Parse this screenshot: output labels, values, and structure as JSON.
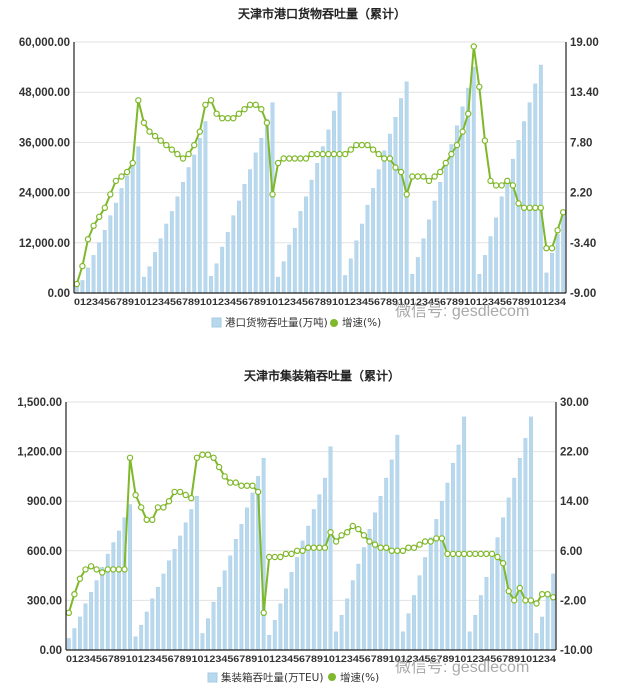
{
  "charts": [
    {
      "chart_data": {
        "type": "bar",
        "title": "天津市港口货物吞吐量（累计）",
        "y_left": {
          "ylim": [
            0,
            60000
          ],
          "ticks": [
            "0.00",
            "12,000.00",
            "24,000.00",
            "36,000.00",
            "48,000.00",
            "60,000.00"
          ]
        },
        "y_right": {
          "ylim": [
            -9,
            19
          ],
          "ticks": [
            "-9.00",
            "-3.40",
            "2.20",
            "7.80",
            "13.40",
            "19.00"
          ]
        },
        "x_tick_text": "0123456789101234567891012345678910123456789101234567891012345678910123456789101234",
        "series": [
          {
            "name": "港口货物吞吐量(万吨)",
            "type": "bar",
            "values": [
              1500,
              3000,
              6000,
              9000,
              12000,
              15000,
              18500,
              21500,
              25000,
              28000,
              31500,
              35000,
              3800,
              6300,
              9700,
              13000,
              16500,
              19500,
              23000,
              26500,
              30000,
              33000,
              37000,
              41000,
              4000,
              7000,
              11000,
              14500,
              18500,
              22000,
              26000,
              29500,
              33500,
              37000,
              41500,
              45500,
              3800,
              7500,
              11500,
              15500,
              19500,
              23000,
              27000,
              31000,
              35000,
              39000,
              43500,
              48000,
              4200,
              8200,
              12500,
              16500,
              21000,
              25000,
              29500,
              34000,
              38000,
              42000,
              46500,
              50500,
              4500,
              8500,
              13000,
              17500,
              22000,
              26500,
              31000,
              35500,
              40000,
              44500,
              49000,
              54000,
              4500,
              9000,
              13500,
              18000,
              23000,
              27500,
              32000,
              36500,
              41000,
              45500,
              50000,
              54500,
              4800,
              9500,
              14000,
              18500
            ]
          },
          {
            "name": "增速(%)",
            "type": "line",
            "values": [
              -8,
              -6,
              -3,
              -1.5,
              -0.5,
              0.5,
              2,
              3.5,
              4,
              4.5,
              5.5,
              12.5,
              10,
              9,
              8.5,
              8,
              7.5,
              7,
              6.5,
              6,
              6.5,
              7.5,
              9,
              12,
              12.5,
              11,
              10.5,
              10.5,
              10.5,
              11,
              11.5,
              12,
              12,
              11.5,
              10,
              2,
              5.5,
              6,
              6,
              6,
              6,
              6,
              6.5,
              6.5,
              6.5,
              6.5,
              6.5,
              6.5,
              6.5,
              7,
              7.5,
              7.5,
              7.5,
              7,
              6.5,
              6,
              6,
              5,
              4.5,
              2,
              4,
              4,
              4,
              3.5,
              4,
              4.5,
              5.5,
              6.5,
              7.5,
              9,
              11,
              18.5,
              14,
              8,
              3.5,
              3,
              3,
              3.5,
              3,
              1,
              0.5,
              0.5,
              0.5,
              0.5,
              -4,
              -4,
              -2,
              0
            ]
          }
        ],
        "legend": "bottom"
      }
    },
    {
      "chart_data": {
        "type": "bar",
        "title": "天津市集装箱吞吐量（累计）",
        "y_left": {
          "ylim": [
            0,
            1500
          ],
          "ticks": [
            "0.00",
            "300.00",
            "600.00",
            "900.00",
            "1,200.00",
            "1,500.00"
          ]
        },
        "y_right": {
          "ylim": [
            -10,
            30
          ],
          "ticks": [
            "-10.00",
            "-2.00",
            "6.00",
            "14.00",
            "22.00",
            "30.00"
          ]
        },
        "x_tick_text": "0123456789101234567891012345678910123456789101234567891012345678910123456789101234",
        "series": [
          {
            "name": "集装箱吞吐量(万TEU)",
            "type": "bar",
            "values": [
              70,
              130,
              200,
              280,
              350,
              420,
              500,
              580,
              650,
              720,
              800,
              880,
              80,
              150,
              230,
              310,
              380,
              460,
              540,
              610,
              690,
              770,
              850,
              930,
              100,
              190,
              290,
              380,
              480,
              570,
              670,
              760,
              860,
              950,
              1050,
              1160,
              90,
              180,
              280,
              370,
              470,
              560,
              660,
              750,
              850,
              940,
              1040,
              1230,
              110,
              210,
              310,
              420,
              520,
              620,
              730,
              830,
              930,
              1040,
              1150,
              1300,
              110,
              220,
              330,
              450,
              560,
              680,
              790,
              900,
              1010,
              1130,
              1240,
              1410,
              110,
              210,
              330,
              440,
              560,
              680,
              800,
              920,
              1040,
              1160,
              1280,
              1410,
              100,
              200,
              320,
              460
            ]
          },
          {
            "name": "增速(%)",
            "type": "line",
            "values": [
              -4,
              -1,
              1.5,
              3,
              3.5,
              3,
              2.5,
              3,
              3,
              3,
              3,
              21,
              15,
              13,
              11,
              11,
              13,
              13,
              14,
              15.5,
              15.5,
              15,
              14.5,
              21,
              21.5,
              21.5,
              21,
              19.5,
              18,
              17,
              17,
              16.5,
              16.5,
              16.5,
              15.5,
              -4,
              5,
              5,
              5,
              5.5,
              5.5,
              6,
              6,
              6.5,
              6.5,
              6.5,
              6.5,
              9,
              7.5,
              8.5,
              9,
              10,
              9.5,
              8.5,
              7.5,
              7,
              6.5,
              6.5,
              6,
              6,
              6,
              6.5,
              6.5,
              7,
              7.5,
              7.5,
              8,
              8,
              5.5,
              5.5,
              5.5,
              5.5,
              5.5,
              5.5,
              5.5,
              5.5,
              5.5,
              5,
              4,
              -0.5,
              -2,
              0,
              -2,
              -2,
              -2.5,
              -1,
              -1,
              -1.5
            ]
          }
        ],
        "legend": "bottom"
      }
    }
  ],
  "watermark": "微信号: gesdlecom",
  "colors": {
    "bar": "#b8d8ee",
    "bar_edge": "#a7cbe4",
    "line": "#7fb82a",
    "marker_fill": "#ffffff",
    "grid": "#e2e2e2",
    "axis": "#222222"
  }
}
